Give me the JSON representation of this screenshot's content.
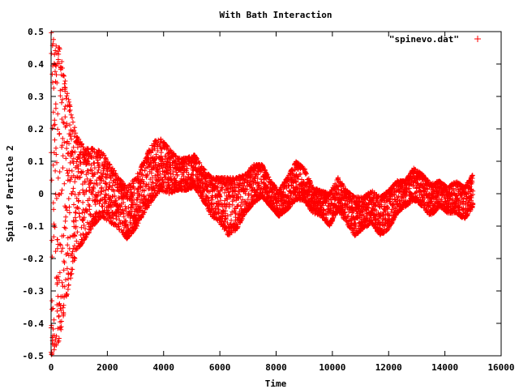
{
  "chart_data": {
    "type": "scatter",
    "title": "With Bath Interaction",
    "xlabel": "Time",
    "ylabel": "Spin of Particle 2",
    "xlim": [
      0,
      16000
    ],
    "ylim": [
      -0.5,
      0.5
    ],
    "xticks": [
      0,
      2000,
      4000,
      6000,
      8000,
      10000,
      12000,
      14000,
      16000
    ],
    "yticks": [
      -0.5,
      -0.4,
      -0.3,
      -0.2,
      -0.1,
      0,
      0.1,
      0.2,
      0.3,
      0.4,
      0.5
    ],
    "ytick_labels": [
      "-0.5",
      "-0.4",
      "-0.3",
      "-0.2",
      "-0.1",
      "0",
      "0.1",
      "0.2",
      "0.3",
      "0.4",
      "0.5"
    ],
    "grid": false,
    "legend_position": "top-right",
    "marker": "+",
    "color": "#ff0000",
    "series": [
      {
        "name": "\"spinevo.dat\"",
        "center_x": [
          0,
          300,
          600,
          900,
          1200,
          1500,
          1800,
          2100,
          2400,
          2700,
          3000,
          3300,
          3600,
          3900,
          4200,
          4500,
          4800,
          5100,
          5400,
          5700,
          6000,
          6300,
          6600,
          6900,
          7200,
          7500,
          7800,
          8100,
          8400,
          8700,
          9000,
          9300,
          9600,
          9900,
          10200,
          10500,
          10800,
          11100,
          11400,
          11700,
          12000,
          12300,
          12600,
          12900,
          13200,
          13500,
          13800,
          14100,
          14400,
          14700,
          15000
        ],
        "center_y": [
          0.0,
          0.0,
          0.0,
          0.0,
          0.0,
          0.02,
          0.03,
          0.0,
          -0.03,
          -0.06,
          -0.03,
          0.02,
          0.07,
          0.09,
          0.07,
          0.06,
          0.06,
          0.07,
          0.03,
          -0.01,
          -0.02,
          -0.04,
          -0.03,
          0.0,
          0.03,
          0.04,
          0.0,
          -0.03,
          0.0,
          0.04,
          0.03,
          -0.02,
          -0.03,
          -0.05,
          0.0,
          -0.04,
          -0.07,
          -0.06,
          -0.04,
          -0.07,
          -0.05,
          -0.01,
          0.0,
          0.03,
          0.01,
          -0.02,
          0.0,
          -0.02,
          -0.01,
          -0.03,
          0.01
        ],
        "half_width": [
          0.5,
          0.45,
          0.3,
          0.18,
          0.14,
          0.12,
          0.1,
          0.09,
          0.08,
          0.08,
          0.08,
          0.08,
          0.09,
          0.08,
          0.07,
          0.05,
          0.05,
          0.05,
          0.05,
          0.06,
          0.07,
          0.09,
          0.08,
          0.06,
          0.06,
          0.05,
          0.04,
          0.04,
          0.05,
          0.06,
          0.05,
          0.04,
          0.04,
          0.05,
          0.05,
          0.05,
          0.06,
          0.05,
          0.05,
          0.06,
          0.06,
          0.05,
          0.04,
          0.05,
          0.05,
          0.05,
          0.04,
          0.04,
          0.05,
          0.05,
          0.05
        ]
      }
    ]
  }
}
